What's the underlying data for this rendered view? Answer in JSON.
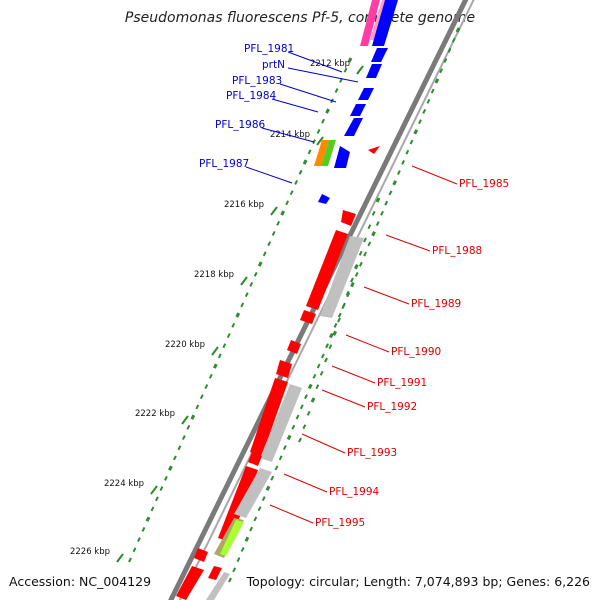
{
  "title": "Pseudomonas fluorescens Pf-5, complete genome",
  "footer": {
    "accession": "Accession: NC_004129",
    "topology": "Topology: circular; Length: 7,074,893 bp; Genes: 6,226"
  },
  "colors": {
    "backbone": "#808080",
    "forward_cds": "#0000ff",
    "reverse_cds": "#ff0000",
    "homolog": "#c0c0c0",
    "ticks": "#228b22"
  },
  "ruler": [
    "2212 kbp",
    "2214 kbp",
    "2216 kbp",
    "2218 kbp",
    "2220 kbp",
    "2222 kbp",
    "2224 kbp",
    "2226 kbp"
  ],
  "forward_labels": [
    "PFL_1981",
    "prtN",
    "PFL_1983",
    "PFL_1984",
    "PFL_1986",
    "PFL_1987"
  ],
  "reverse_labels": [
    "PFL_1985",
    "PFL_1988",
    "PFL_1989",
    "PFL_1990",
    "PFL_1991",
    "PFL_1992",
    "PFL_1993",
    "PFL_1994",
    "PFL_1995"
  ]
}
